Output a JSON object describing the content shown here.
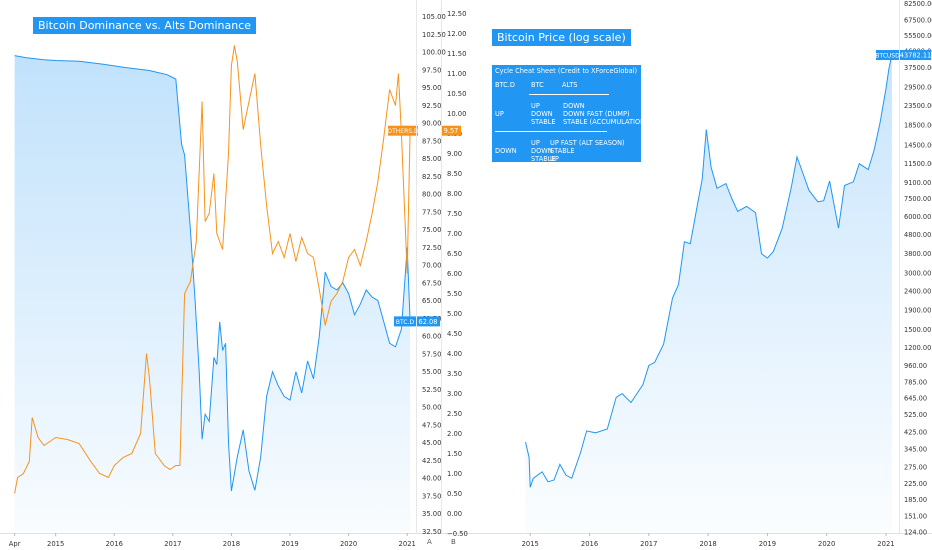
{
  "colors": {
    "btcd": "#2196f3",
    "others": "#f7931a",
    "btc_price": "#2196f3",
    "banner": "#2196f3"
  },
  "left_panel": {
    "title": "Bitcoin Dominance vs. Alts Dominance",
    "footer_letters": [
      "A",
      "B"
    ]
  },
  "right_panel": {
    "title": "Bitcoin Price (log scale)"
  },
  "cheat_sheet": {
    "title": "Cycle Cheat Sheet (Credit to XForceGlobal)",
    "columns": [
      "BTC.D",
      "BTC",
      "ALTS"
    ],
    "row_up": {
      "btcd": "UP",
      "btc": [
        "UP",
        "DOWN",
        "STABLE"
      ],
      "alts": [
        "DOWN",
        "DOWN FAST (DUMP)",
        "STABLE (ACCUMULATION)"
      ]
    },
    "row_down": {
      "btcd": "DOWN",
      "btc": [
        "UP",
        "DOWN",
        "STABLE"
      ],
      "alts": [
        "UP FAST (ALT SEASON)",
        "STABLE",
        "UP"
      ]
    }
  },
  "chart_data": [
    {
      "type": "area",
      "title": "Bitcoin Dominance vs. Alts Dominance",
      "x_labels": [
        "Apr",
        "2015",
        "2016",
        "2017",
        "2018",
        "2019",
        "2020",
        "2021"
      ],
      "y_axis_primary": {
        "ticks": [
          "105.00",
          "102.50",
          "100.00",
          "97.50",
          "95.00",
          "92.50",
          "90.00",
          "87.50",
          "85.00",
          "82.50",
          "80.00",
          "77.50",
          "75.00",
          "72.50",
          "70.00",
          "67.50",
          "65.00",
          "62.50",
          "60.00",
          "57.50",
          "55.00",
          "52.50",
          "50.00",
          "47.50",
          "45.00",
          "42.50",
          "40.00",
          "37.50",
          "35.00",
          "32.50"
        ],
        "range": [
          32.5,
          105
        ]
      },
      "y_axis_secondary": {
        "ticks": [
          "12.50",
          "12.00",
          "11.50",
          "11.00",
          "10.50",
          "10.00",
          "9.50",
          "9.00",
          "8.50",
          "8.00",
          "7.50",
          "7.00",
          "6.50",
          "6.00",
          "5.50",
          "5.00",
          "4.50",
          "4.00",
          "3.50",
          "3.00",
          "2.50",
          "2.00",
          "1.50",
          "1.00",
          "0.50",
          "0.00",
          "−0.50"
        ],
        "range": [
          -0.5,
          12.5
        ]
      },
      "series": [
        {
          "name": "BTC.D",
          "last_label": "62.08",
          "axis": "primary",
          "points": [
            [
              2014.3,
              99.5
            ],
            [
              2014.5,
              99.2
            ],
            [
              2014.8,
              98.9
            ],
            [
              2015.0,
              98.8
            ],
            [
              2015.4,
              98.7
            ],
            [
              2015.8,
              98.3
            ],
            [
              2016.2,
              97.8
            ],
            [
              2016.6,
              97.4
            ],
            [
              2016.9,
              96.8
            ],
            [
              2017.05,
              96.2
            ],
            [
              2017.15,
              87.0
            ],
            [
              2017.2,
              85.5
            ],
            [
              2017.3,
              75.0
            ],
            [
              2017.38,
              65.0
            ],
            [
              2017.45,
              55.0
            ],
            [
              2017.5,
              45.5
            ],
            [
              2017.55,
              49.0
            ],
            [
              2017.62,
              48.0
            ],
            [
              2017.7,
              57.0
            ],
            [
              2017.75,
              56.0
            ],
            [
              2017.8,
              62.0
            ],
            [
              2017.85,
              58.0
            ],
            [
              2017.9,
              59.0
            ],
            [
              2017.95,
              45.0
            ],
            [
              2018.0,
              38.2
            ],
            [
              2018.1,
              43.0
            ],
            [
              2018.2,
              46.8
            ],
            [
              2018.3,
              41.0
            ],
            [
              2018.4,
              38.3
            ],
            [
              2018.5,
              43.0
            ],
            [
              2018.6,
              51.5
            ],
            [
              2018.7,
              55.0
            ],
            [
              2018.8,
              53.0
            ],
            [
              2018.9,
              51.5
            ],
            [
              2019.0,
              51.0
            ],
            [
              2019.1,
              55.0
            ],
            [
              2019.2,
              52.0
            ],
            [
              2019.3,
              56.5
            ],
            [
              2019.4,
              54.0
            ],
            [
              2019.5,
              60.0
            ],
            [
              2019.6,
              69.0
            ],
            [
              2019.7,
              67.0
            ],
            [
              2019.8,
              66.5
            ],
            [
              2019.9,
              67.5
            ],
            [
              2020.0,
              66.0
            ],
            [
              2020.1,
              63.0
            ],
            [
              2020.2,
              64.5
            ],
            [
              2020.3,
              66.5
            ],
            [
              2020.4,
              65.5
            ],
            [
              2020.5,
              65.0
            ],
            [
              2020.6,
              62.0
            ],
            [
              2020.7,
              59.0
            ],
            [
              2020.8,
              58.5
            ],
            [
              2020.9,
              61.0
            ],
            [
              2021.0,
              72.5
            ],
            [
              2021.05,
              62.08
            ]
          ]
        },
        {
          "name": "OTHERS.D",
          "last_label": "9.57",
          "axis": "secondary",
          "points": [
            [
              2014.3,
              0.5
            ],
            [
              2014.35,
              0.9
            ],
            [
              2014.45,
              1.0
            ],
            [
              2014.55,
              1.3
            ],
            [
              2014.6,
              2.4
            ],
            [
              2014.7,
              1.9
            ],
            [
              2014.8,
              1.7
            ],
            [
              2014.9,
              1.8
            ],
            [
              2015.0,
              1.9
            ],
            [
              2015.2,
              1.85
            ],
            [
              2015.4,
              1.75
            ],
            [
              2015.6,
              1.3
            ],
            [
              2015.75,
              1.0
            ],
            [
              2015.9,
              0.9
            ],
            [
              2016.0,
              1.2
            ],
            [
              2016.15,
              1.4
            ],
            [
              2016.3,
              1.5
            ],
            [
              2016.45,
              2.0
            ],
            [
              2016.55,
              4.0
            ],
            [
              2016.6,
              3.4
            ],
            [
              2016.7,
              1.5
            ],
            [
              2016.85,
              1.2
            ],
            [
              2016.95,
              1.1
            ],
            [
              2017.05,
              1.2
            ],
            [
              2017.12,
              1.2
            ],
            [
              2017.2,
              5.5
            ],
            [
              2017.3,
              5.8
            ],
            [
              2017.4,
              6.8
            ],
            [
              2017.5,
              10.3
            ],
            [
              2017.55,
              7.3
            ],
            [
              2017.62,
              7.5
            ],
            [
              2017.7,
              8.5
            ],
            [
              2017.75,
              7.0
            ],
            [
              2017.85,
              6.6
            ],
            [
              2017.95,
              9.0
            ],
            [
              2018.0,
              11.2
            ],
            [
              2018.05,
              11.7
            ],
            [
              2018.1,
              11.3
            ],
            [
              2018.2,
              9.6
            ],
            [
              2018.3,
              10.3
            ],
            [
              2018.4,
              11.0
            ],
            [
              2018.5,
              9.2
            ],
            [
              2018.6,
              7.7
            ],
            [
              2018.7,
              6.5
            ],
            [
              2018.8,
              6.8
            ],
            [
              2018.9,
              6.4
            ],
            [
              2019.0,
              7.0
            ],
            [
              2019.1,
              6.3
            ],
            [
              2019.2,
              6.9
            ],
            [
              2019.3,
              6.5
            ],
            [
              2019.4,
              6.4
            ],
            [
              2019.5,
              5.6
            ],
            [
              2019.6,
              4.7
            ],
            [
              2019.7,
              5.3
            ],
            [
              2019.8,
              5.5
            ],
            [
              2019.9,
              5.8
            ],
            [
              2020.0,
              6.4
            ],
            [
              2020.1,
              6.6
            ],
            [
              2020.2,
              6.2
            ],
            [
              2020.3,
              6.8
            ],
            [
              2020.4,
              7.5
            ],
            [
              2020.5,
              8.3
            ],
            [
              2020.6,
              9.4
            ],
            [
              2020.7,
              10.6
            ],
            [
              2020.8,
              10.2
            ],
            [
              2020.85,
              11.0
            ],
            [
              2020.9,
              9.5
            ],
            [
              2021.0,
              6.0
            ],
            [
              2021.05,
              9.57
            ]
          ]
        }
      ]
    },
    {
      "type": "area",
      "title": "Bitcoin Price (log scale)",
      "x_labels": [
        "2015",
        "2016",
        "2017",
        "2018",
        "2019",
        "2020",
        "2021"
      ],
      "scale": "log",
      "y_axis": {
        "ticks": [
          "82500.00",
          "67500.00",
          "55500.00",
          "46000.00",
          "37500.00",
          "29500.00",
          "23500.00",
          "18500.00",
          "14500.00",
          "11500.00",
          "9100.00",
          "7500.00",
          "6000.00",
          "4800.00",
          "3800.00",
          "3000.00",
          "2400.00",
          "1900.00",
          "1500.00",
          "1200.00",
          "960.00",
          "785.00",
          "645.00",
          "525.00",
          "425.00",
          "345.00",
          "275.00",
          "225.00",
          "185.00",
          "151.00",
          "124.00"
        ],
        "range": [
          124,
          82500
        ]
      },
      "series": [
        {
          "name": "BTCUSD",
          "last_label": "43782.11",
          "points": [
            [
              2014.92,
              375
            ],
            [
              2014.98,
              310
            ],
            [
              2015.0,
              215
            ],
            [
              2015.05,
              240
            ],
            [
              2015.2,
              260
            ],
            [
              2015.3,
              230
            ],
            [
              2015.4,
              235
            ],
            [
              2015.5,
              285
            ],
            [
              2015.6,
              250
            ],
            [
              2015.7,
              240
            ],
            [
              2015.85,
              330
            ],
            [
              2015.95,
              430
            ],
            [
              2016.1,
              420
            ],
            [
              2016.3,
              440
            ],
            [
              2016.45,
              650
            ],
            [
              2016.55,
              680
            ],
            [
              2016.7,
              610
            ],
            [
              2016.9,
              760
            ],
            [
              2017.0,
              960
            ],
            [
              2017.1,
              1000
            ],
            [
              2017.25,
              1250
            ],
            [
              2017.4,
              2200
            ],
            [
              2017.5,
              2600
            ],
            [
              2017.6,
              4400
            ],
            [
              2017.7,
              4300
            ],
            [
              2017.8,
              6400
            ],
            [
              2017.9,
              9500
            ],
            [
              2017.97,
              17500
            ],
            [
              2018.05,
              11000
            ],
            [
              2018.15,
              8500
            ],
            [
              2018.3,
              9000
            ],
            [
              2018.4,
              7500
            ],
            [
              2018.5,
              6400
            ],
            [
              2018.65,
              6800
            ],
            [
              2018.8,
              6300
            ],
            [
              2018.9,
              3800
            ],
            [
              2019.0,
              3600
            ],
            [
              2019.1,
              3900
            ],
            [
              2019.25,
              5200
            ],
            [
              2019.4,
              8500
            ],
            [
              2019.5,
              12500
            ],
            [
              2019.6,
              10200
            ],
            [
              2019.7,
              8300
            ],
            [
              2019.85,
              7200
            ],
            [
              2019.95,
              7300
            ],
            [
              2020.05,
              9300
            ],
            [
              2020.2,
              5200
            ],
            [
              2020.3,
              8800
            ],
            [
              2020.45,
              9200
            ],
            [
              2020.55,
              11500
            ],
            [
              2020.7,
              10700
            ],
            [
              2020.8,
              13600
            ],
            [
              2020.9,
              19000
            ],
            [
              2021.0,
              29000
            ],
            [
              2021.05,
              37000
            ],
            [
              2021.1,
              43782
            ]
          ]
        }
      ]
    }
  ]
}
